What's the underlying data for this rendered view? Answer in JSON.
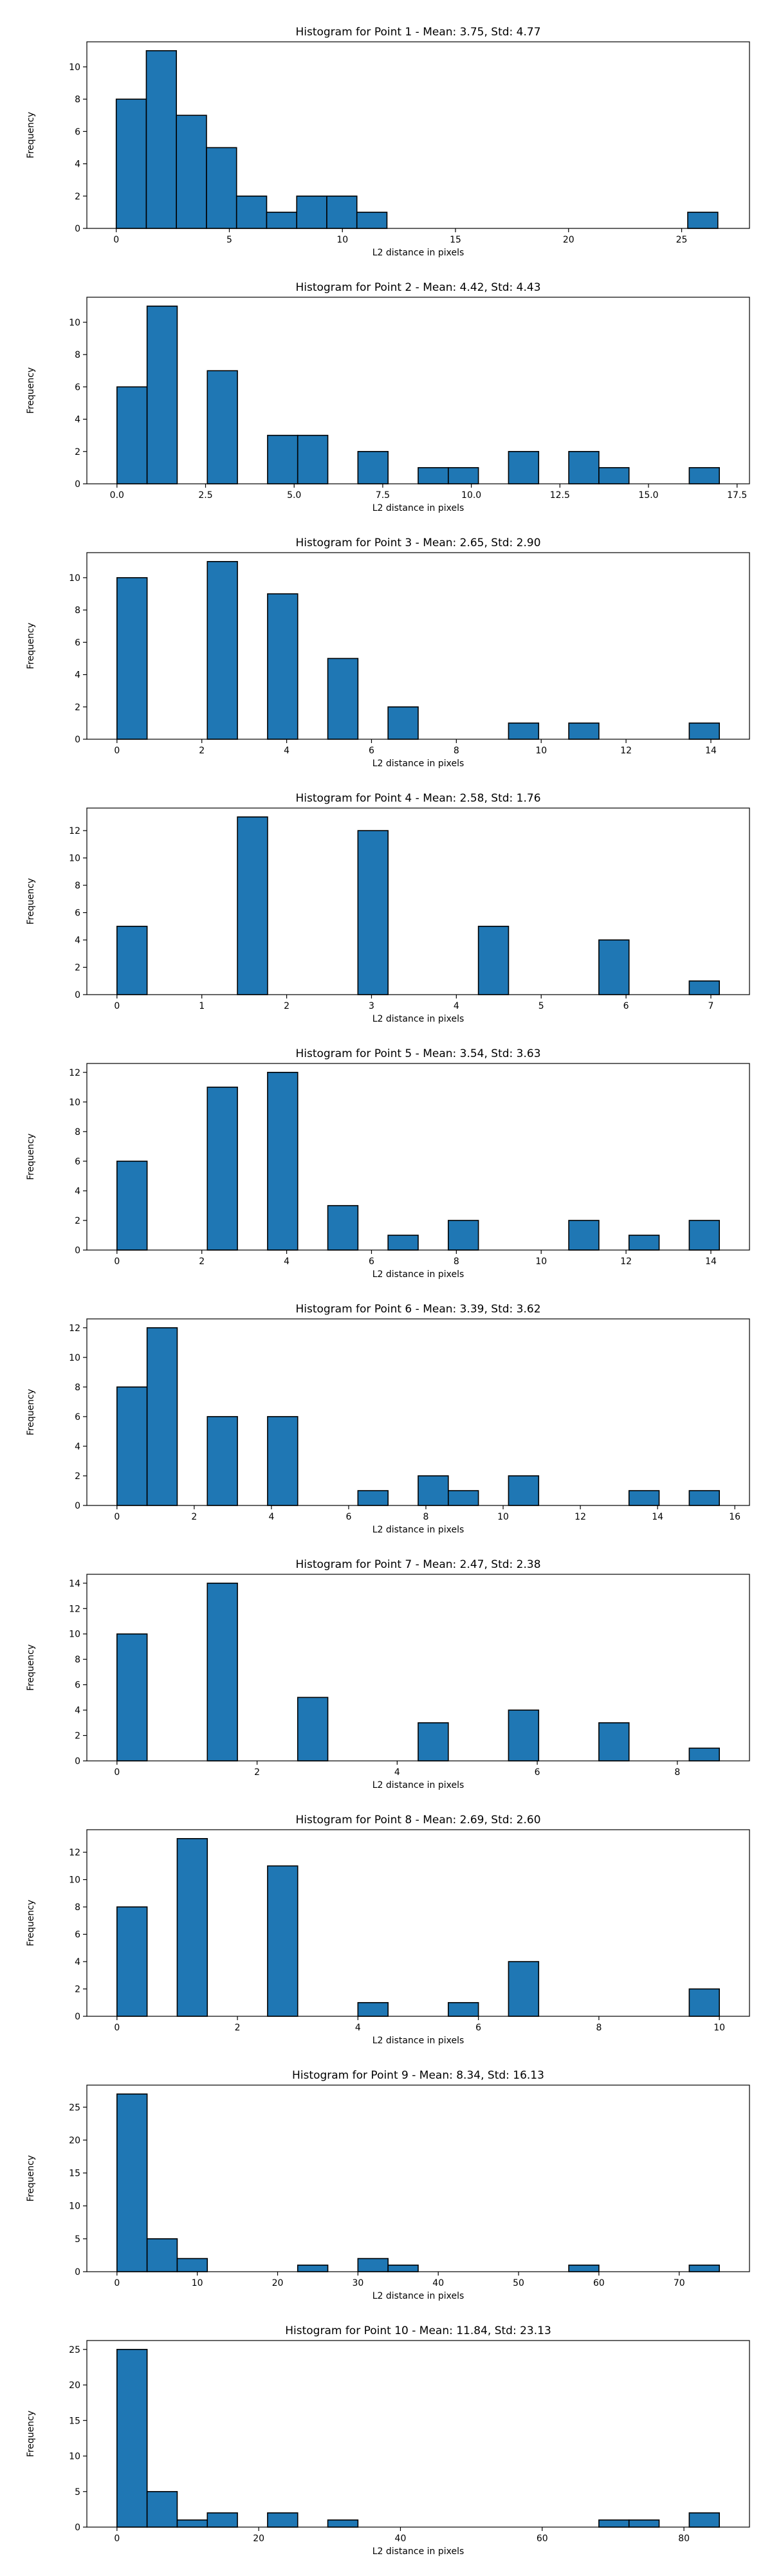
{
  "figure": {
    "bar_color": "#1f77b4",
    "edge_color": "#000000"
  },
  "chart_data": [
    {
      "type": "bar",
      "title": "Histogram for Point 1 - Mean: 3.75, Std: 4.77",
      "xlabel": "L2 distance in pixels",
      "ylabel": "Frequency",
      "bin_range": [
        0,
        26.6
      ],
      "bins": 20,
      "values": [
        8,
        11,
        7,
        5,
        2,
        1,
        2,
        2,
        1,
        0,
        0,
        0,
        0,
        0,
        0,
        0,
        0,
        0,
        0,
        1
      ],
      "xlim": [
        -1.3,
        28.0
      ],
      "ylim": [
        0,
        11.55
      ],
      "xticks": [
        0,
        5,
        10,
        15,
        20,
        25
      ],
      "xtick_labels": [
        "0",
        "5",
        "10",
        "15",
        "20",
        "25"
      ],
      "yticks": [
        0,
        2,
        4,
        6,
        8,
        10
      ],
      "ytick_labels": [
        "0",
        "2",
        "4",
        "6",
        "8",
        "10"
      ]
    },
    {
      "type": "bar",
      "title": "Histogram for Point 2 - Mean: 4.42, Std: 4.43",
      "xlabel": "L2 distance in pixels",
      "ylabel": "Frequency",
      "bin_range": [
        0,
        17.0
      ],
      "bins": 20,
      "values": [
        6,
        11,
        0,
        7,
        0,
        3,
        3,
        0,
        2,
        0,
        1,
        1,
        0,
        2,
        0,
        2,
        1,
        0,
        0,
        1
      ],
      "xlim": [
        -0.85,
        17.85
      ],
      "ylim": [
        0,
        11.55
      ],
      "xticks": [
        0,
        2.5,
        5,
        7.5,
        10,
        12.5,
        15,
        17.5
      ],
      "xtick_labels": [
        "0.0",
        "2.5",
        "5.0",
        "7.5",
        "10.0",
        "12.5",
        "15.0",
        "17.5"
      ],
      "yticks": [
        0,
        2,
        4,
        6,
        8,
        10
      ],
      "ytick_labels": [
        "0",
        "2",
        "4",
        "6",
        "8",
        "10"
      ]
    },
    {
      "type": "bar",
      "title": "Histogram for Point 3 - Mean: 2.65, Std: 2.90",
      "xlabel": "L2 distance in pixels",
      "ylabel": "Frequency",
      "bin_range": [
        0,
        14.2
      ],
      "bins": 20,
      "values": [
        10,
        0,
        0,
        11,
        0,
        9,
        0,
        5,
        0,
        2,
        0,
        0,
        0,
        1,
        0,
        1,
        0,
        0,
        0,
        1
      ],
      "xlim": [
        -0.71,
        14.91
      ],
      "ylim": [
        0,
        11.55
      ],
      "xticks": [
        0,
        2,
        4,
        6,
        8,
        10,
        12,
        14
      ],
      "xtick_labels": [
        "0",
        "2",
        "4",
        "6",
        "8",
        "10",
        "12",
        "14"
      ],
      "yticks": [
        0,
        2,
        4,
        6,
        8,
        10
      ],
      "ytick_labels": [
        "0",
        "2",
        "4",
        "6",
        "8",
        "10"
      ]
    },
    {
      "type": "bar",
      "title": "Histogram for Point 4 - Mean: 2.58, Std: 1.76",
      "xlabel": "L2 distance in pixels",
      "ylabel": "Frequency",
      "bin_range": [
        0,
        7.1
      ],
      "bins": 20,
      "values": [
        5,
        0,
        0,
        0,
        13,
        0,
        0,
        0,
        12,
        0,
        0,
        0,
        5,
        0,
        0,
        0,
        4,
        0,
        0,
        1
      ],
      "xlim": [
        -0.355,
        7.455
      ],
      "ylim": [
        0,
        13.65
      ],
      "xticks": [
        0,
        1,
        2,
        3,
        4,
        5,
        6,
        7
      ],
      "xtick_labels": [
        "0",
        "1",
        "2",
        "3",
        "4",
        "5",
        "6",
        "7"
      ],
      "yticks": [
        0,
        2,
        4,
        6,
        8,
        10,
        12
      ],
      "ytick_labels": [
        "0",
        "2",
        "4",
        "6",
        "8",
        "10",
        "12"
      ]
    },
    {
      "type": "bar",
      "title": "Histogram for Point 5 - Mean: 3.54, Std: 3.63",
      "xlabel": "L2 distance in pixels",
      "ylabel": "Frequency",
      "bin_range": [
        0,
        14.2
      ],
      "bins": 20,
      "values": [
        6,
        0,
        0,
        11,
        0,
        12,
        0,
        3,
        0,
        1,
        0,
        2,
        0,
        0,
        0,
        2,
        0,
        1,
        0,
        2
      ],
      "xlim": [
        -0.71,
        14.91
      ],
      "ylim": [
        0,
        12.6
      ],
      "xticks": [
        0,
        2,
        4,
        6,
        8,
        10,
        12,
        14
      ],
      "xtick_labels": [
        "0",
        "2",
        "4",
        "6",
        "8",
        "10",
        "12",
        "14"
      ],
      "yticks": [
        0,
        2,
        4,
        6,
        8,
        10,
        12
      ],
      "ytick_labels": [
        "0",
        "2",
        "4",
        "6",
        "8",
        "10",
        "12"
      ]
    },
    {
      "type": "bar",
      "title": "Histogram for Point 6 - Mean: 3.39, Std: 3.62",
      "xlabel": "L2 distance in pixels",
      "ylabel": "Frequency",
      "bin_range": [
        0,
        15.6
      ],
      "bins": 20,
      "values": [
        8,
        12,
        0,
        6,
        0,
        6,
        0,
        0,
        1,
        0,
        2,
        1,
        0,
        2,
        0,
        0,
        0,
        1,
        0,
        1
      ],
      "xlim": [
        -0.78,
        16.38
      ],
      "ylim": [
        0,
        12.6
      ],
      "xticks": [
        0,
        2,
        4,
        6,
        8,
        10,
        12,
        14,
        16
      ],
      "xtick_labels": [
        "0",
        "2",
        "4",
        "6",
        "8",
        "10",
        "12",
        "14",
        "16"
      ],
      "yticks": [
        0,
        2,
        4,
        6,
        8,
        10,
        12
      ],
      "ytick_labels": [
        "0",
        "2",
        "4",
        "6",
        "8",
        "10",
        "12"
      ]
    },
    {
      "type": "bar",
      "title": "Histogram for Point 7 - Mean: 2.47, Std: 2.38",
      "xlabel": "L2 distance in pixels",
      "ylabel": "Frequency",
      "bin_range": [
        0,
        8.6
      ],
      "bins": 20,
      "values": [
        10,
        0,
        0,
        14,
        0,
        0,
        5,
        0,
        0,
        0,
        3,
        0,
        0,
        4,
        0,
        0,
        3,
        0,
        0,
        1
      ],
      "xlim": [
        -0.43,
        9.03
      ],
      "ylim": [
        0,
        14.7
      ],
      "xticks": [
        0,
        2,
        4,
        6,
        8
      ],
      "xtick_labels": [
        "0",
        "2",
        "4",
        "6",
        "8"
      ],
      "yticks": [
        0,
        2,
        4,
        6,
        8,
        10,
        12,
        14
      ],
      "ytick_labels": [
        "0",
        "2",
        "4",
        "6",
        "8",
        "10",
        "12",
        "14"
      ]
    },
    {
      "type": "bar",
      "title": "Histogram for Point 8 - Mean: 2.69, Std: 2.60",
      "xlabel": "L2 distance in pixels",
      "ylabel": "Frequency",
      "bin_range": [
        0,
        10.0
      ],
      "bins": 20,
      "values": [
        8,
        0,
        13,
        0,
        0,
        11,
        0,
        0,
        1,
        0,
        0,
        1,
        0,
        4,
        0,
        0,
        0,
        0,
        0,
        2
      ],
      "xlim": [
        -0.5,
        10.5
      ],
      "ylim": [
        0,
        13.65
      ],
      "xticks": [
        0,
        2,
        4,
        6,
        8,
        10
      ],
      "xtick_labels": [
        "0",
        "2",
        "4",
        "6",
        "8",
        "10"
      ],
      "yticks": [
        0,
        2,
        4,
        6,
        8,
        10,
        12
      ],
      "ytick_labels": [
        "0",
        "2",
        "4",
        "6",
        "8",
        "10",
        "12"
      ]
    },
    {
      "type": "bar",
      "title": "Histogram for Point 9 - Mean: 8.34, Std: 16.13",
      "xlabel": "L2 distance in pixels",
      "ylabel": "Frequency",
      "bin_range": [
        0,
        75.0
      ],
      "bins": 20,
      "values": [
        27,
        5,
        2,
        0,
        0,
        0,
        1,
        0,
        2,
        1,
        0,
        0,
        0,
        0,
        0,
        1,
        0,
        0,
        0,
        1
      ],
      "xlim": [
        -3.75,
        78.75
      ],
      "ylim": [
        0,
        28.35
      ],
      "xticks": [
        0,
        10,
        20,
        30,
        40,
        50,
        60,
        70
      ],
      "xtick_labels": [
        "0",
        "10",
        "20",
        "30",
        "40",
        "50",
        "60",
        "70"
      ],
      "yticks": [
        0,
        5,
        10,
        15,
        20,
        25
      ],
      "ytick_labels": [
        "0",
        "5",
        "10",
        "15",
        "20",
        "25"
      ]
    },
    {
      "type": "bar",
      "title": "Histogram for Point 10 - Mean: 11.84, Std: 23.13",
      "xlabel": "L2 distance in pixels",
      "ylabel": "Frequency",
      "bin_range": [
        0,
        85.0
      ],
      "bins": 20,
      "values": [
        25,
        5,
        1,
        2,
        0,
        2,
        0,
        1,
        0,
        0,
        0,
        0,
        0,
        0,
        0,
        0,
        1,
        1,
        0,
        2
      ],
      "xlim": [
        -4.25,
        89.25
      ],
      "ylim": [
        0,
        26.25
      ],
      "xticks": [
        0,
        20,
        40,
        60,
        80
      ],
      "xtick_labels": [
        "0",
        "20",
        "40",
        "60",
        "80"
      ],
      "yticks": [
        0,
        5,
        10,
        15,
        20,
        25
      ],
      "ytick_labels": [
        "0",
        "5",
        "10",
        "15",
        "20",
        "25"
      ]
    }
  ]
}
